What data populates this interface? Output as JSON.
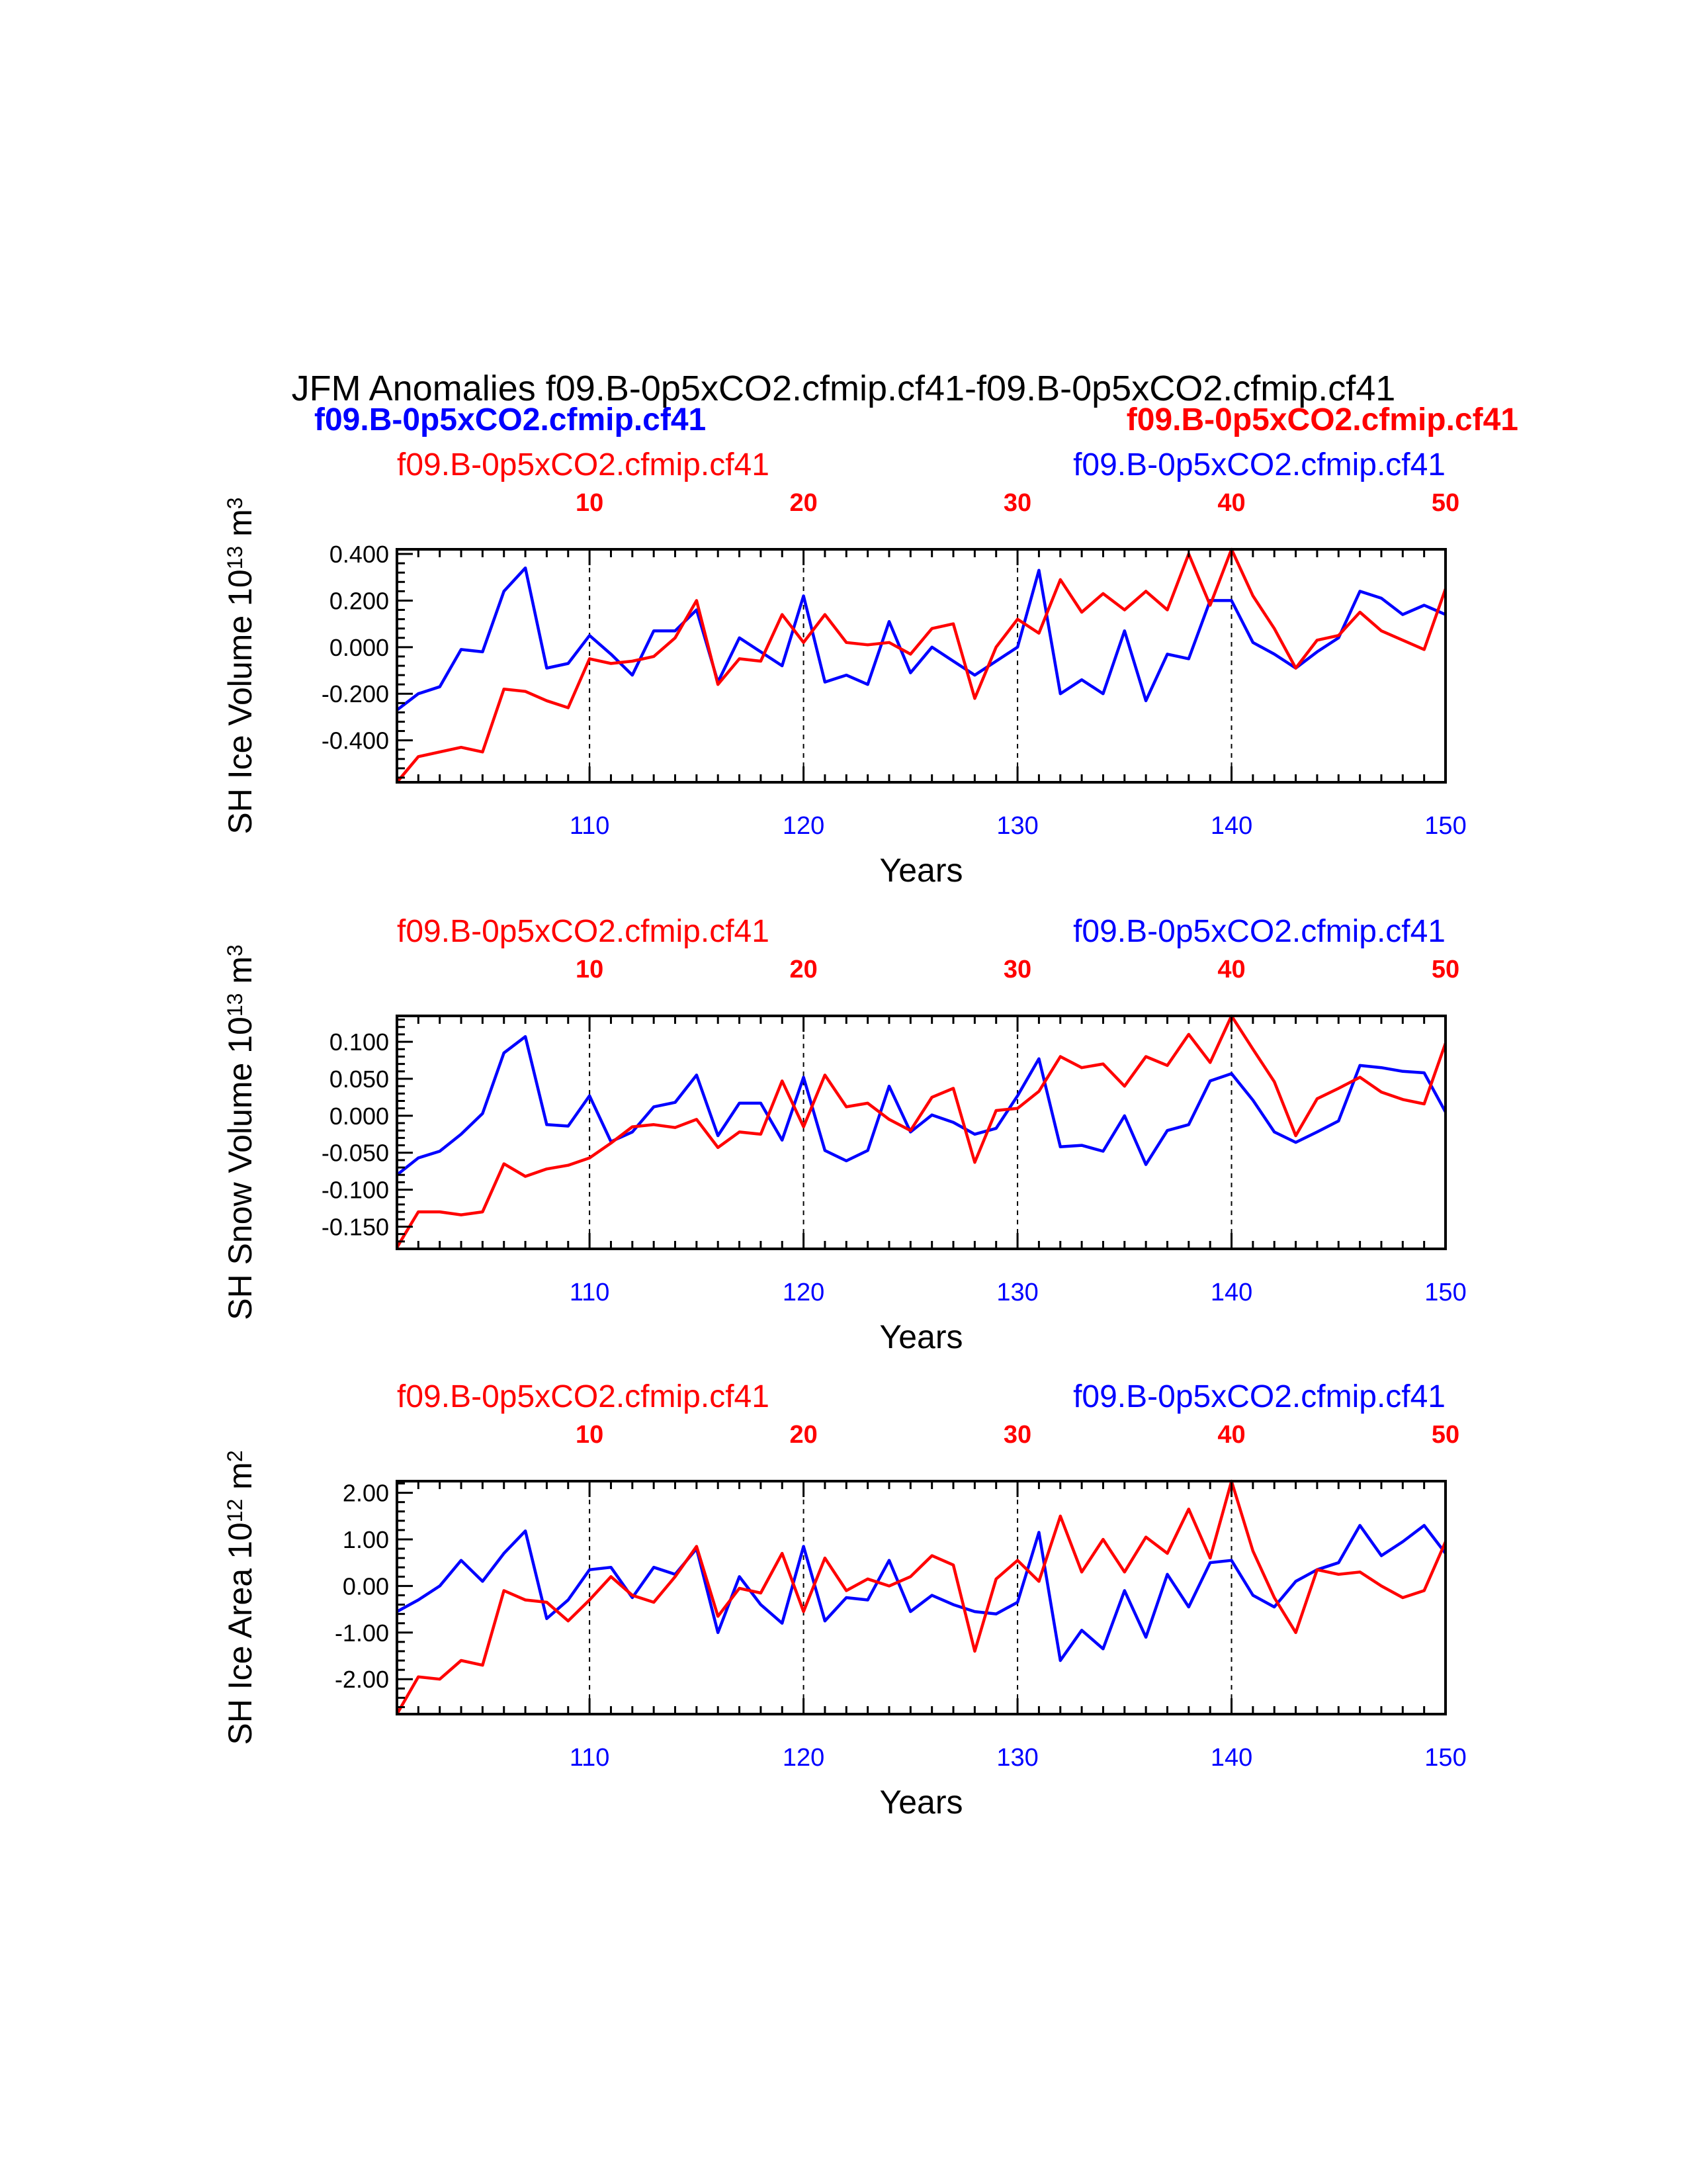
{
  "header": {
    "title": "JFM Anomalies f09.B-0p5xCO2.cfmip.cf41-f09.B-0p5xCO2.cfmip.cf41",
    "left_bold": "f09.B-0p5xCO2.cfmip.cf41",
    "right_bold": "f09.B-0p5xCO2.cfmip.cf41"
  },
  "colors": {
    "blue": "#0000ff",
    "red": "#ff0000",
    "axis": "#000000"
  },
  "chart_data": [
    {
      "type": "line",
      "ylabel": "SH Ice Volume 10",
      "ylabel_sup1": "13",
      "ylabel_unit": " m",
      "ylabel_sup2": "3",
      "xlabel": "Years",
      "left_label": "f09.B-0p5xCO2.cfmip.cf41",
      "right_label": "f09.B-0p5xCO2.cfmip.cf41",
      "ylim": [
        -0.58,
        0.42
      ],
      "yticks": [
        "-0.400",
        "-0.200",
        "0.000",
        "0.200",
        "0.400"
      ],
      "ytick_values": [
        -0.4,
        -0.2,
        0.0,
        0.2,
        0.4
      ],
      "xlim": [
        101,
        150
      ],
      "xticks_bottom": [
        "110",
        "120",
        "130",
        "140",
        "150"
      ],
      "xticks_top": [
        "10",
        "20",
        "30",
        "40",
        "50"
      ],
      "xtick_values": [
        110,
        120,
        130,
        140,
        150
      ],
      "series": [
        {
          "color": "#0000ff",
          "start": 101,
          "values": [
            -0.27,
            -0.2,
            -0.17,
            -0.01,
            -0.02,
            0.24,
            0.34,
            -0.09,
            -0.07,
            0.05,
            -0.03,
            -0.12,
            0.07,
            0.07,
            0.16,
            -0.15,
            0.04,
            -0.02,
            -0.08,
            0.22,
            -0.15,
            -0.12,
            -0.16,
            0.11,
            -0.11,
            0.0,
            -0.06,
            -0.12,
            -0.06,
            0.0,
            0.33,
            -0.2,
            -0.14,
            -0.2,
            0.07,
            -0.23,
            -0.03,
            -0.05,
            0.2,
            0.2,
            0.02,
            -0.03,
            -0.09,
            -0.02,
            0.04,
            0.24,
            0.21,
            0.14,
            0.18,
            0.14
          ]
        },
        {
          "color": "#ff0000",
          "start": 101,
          "values": [
            -0.58,
            -0.47,
            -0.45,
            -0.43,
            -0.45,
            -0.18,
            -0.19,
            -0.23,
            -0.26,
            -0.05,
            -0.07,
            -0.06,
            -0.04,
            0.04,
            0.2,
            -0.16,
            -0.05,
            -0.06,
            0.14,
            0.02,
            0.14,
            0.02,
            0.01,
            0.02,
            -0.03,
            0.08,
            0.1,
            -0.22,
            0.0,
            0.12,
            0.06,
            0.29,
            0.15,
            0.23,
            0.16,
            0.24,
            0.16,
            0.4,
            0.18,
            0.42,
            0.22,
            0.08,
            -0.09,
            0.03,
            0.05,
            0.15,
            0.07,
            0.03,
            -0.01,
            0.25
          ]
        }
      ]
    },
    {
      "type": "line",
      "ylabel": "SH Snow Volume 10",
      "ylabel_sup1": "13",
      "ylabel_unit": " m",
      "ylabel_sup2": "3",
      "xlabel": "Years",
      "left_label": "f09.B-0p5xCO2.cfmip.cf41",
      "right_label": "f09.B-0p5xCO2.cfmip.cf41",
      "ylim": [
        -0.18,
        0.135
      ],
      "yticks": [
        "-0.150",
        "-0.100",
        "-0.050",
        "0.000",
        "0.050",
        "0.100"
      ],
      "ytick_values": [
        -0.15,
        -0.1,
        -0.05,
        0.0,
        0.05,
        0.1
      ],
      "xlim": [
        101,
        150
      ],
      "xticks_bottom": [
        "110",
        "120",
        "130",
        "140",
        "150"
      ],
      "xticks_top": [
        "10",
        "20",
        "30",
        "40",
        "50"
      ],
      "xtick_values": [
        110,
        120,
        130,
        140,
        150
      ],
      "series": [
        {
          "color": "#0000ff",
          "start": 101,
          "values": [
            -0.08,
            -0.057,
            -0.048,
            -0.025,
            0.003,
            0.085,
            0.107,
            -0.012,
            -0.014,
            0.027,
            -0.035,
            -0.022,
            0.012,
            0.018,
            0.055,
            -0.027,
            0.017,
            0.017,
            -0.033,
            0.052,
            -0.047,
            -0.061,
            -0.047,
            0.04,
            -0.022,
            0.001,
            -0.009,
            -0.025,
            -0.017,
            0.027,
            0.077,
            -0.042,
            -0.04,
            -0.048,
            0.0,
            -0.066,
            -0.02,
            -0.012,
            0.047,
            0.057,
            0.021,
            -0.022,
            -0.036,
            -0.022,
            -0.007,
            0.068,
            0.065,
            0.06,
            0.058,
            0.005
          ]
        },
        {
          "color": "#ff0000",
          "start": 101,
          "values": [
            -0.178,
            -0.13,
            -0.13,
            -0.134,
            -0.13,
            -0.065,
            -0.082,
            -0.072,
            -0.067,
            -0.057,
            -0.037,
            -0.015,
            -0.012,
            -0.016,
            -0.005,
            -0.043,
            -0.022,
            -0.025,
            0.047,
            -0.015,
            0.055,
            0.012,
            0.017,
            -0.005,
            -0.02,
            0.025,
            0.037,
            -0.063,
            0.007,
            0.01,
            0.033,
            0.08,
            0.065,
            0.07,
            0.04,
            0.08,
            0.068,
            0.11,
            0.072,
            0.135,
            0.09,
            0.046,
            -0.027,
            0.023,
            0.037,
            0.052,
            0.032,
            0.022,
            0.016,
            0.098
          ]
        }
      ]
    },
    {
      "type": "line",
      "ylabel": "SH Ice Area 10",
      "ylabel_sup1": "12",
      "ylabel_unit": " m",
      "ylabel_sup2": "2",
      "xlabel": "Years",
      "left_label": "f09.B-0p5xCO2.cfmip.cf41",
      "right_label": "f09.B-0p5xCO2.cfmip.cf41",
      "ylim": [
        -2.75,
        2.25
      ],
      "yticks": [
        "-2.00",
        "-1.00",
        "0.00",
        "1.00",
        "2.00"
      ],
      "ytick_values": [
        -2.0,
        -1.0,
        0.0,
        1.0,
        2.0
      ],
      "xlim": [
        101,
        150
      ],
      "xticks_bottom": [
        "110",
        "120",
        "130",
        "140",
        "150"
      ],
      "xticks_top": [
        "10",
        "20",
        "30",
        "40",
        "50"
      ],
      "xtick_values": [
        110,
        120,
        130,
        140,
        150
      ],
      "series": [
        {
          "color": "#0000ff",
          "start": 101,
          "values": [
            -0.55,
            -0.3,
            0.0,
            0.55,
            0.1,
            0.7,
            1.18,
            -0.7,
            -0.3,
            0.35,
            0.4,
            -0.25,
            0.4,
            0.25,
            0.8,
            -1.0,
            0.2,
            -0.4,
            -0.8,
            0.85,
            -0.75,
            -0.25,
            -0.3,
            0.55,
            -0.55,
            -0.2,
            -0.4,
            -0.55,
            -0.6,
            -0.35,
            1.15,
            -1.6,
            -0.95,
            -1.35,
            -0.1,
            -1.1,
            0.25,
            -0.45,
            0.5,
            0.55,
            -0.2,
            -0.45,
            0.1,
            0.35,
            0.5,
            1.3,
            0.65,
            0.95,
            1.3,
            0.7
          ]
        },
        {
          "color": "#ff0000",
          "start": 101,
          "values": [
            -2.75,
            -1.95,
            -2.0,
            -1.6,
            -1.7,
            -0.1,
            -0.3,
            -0.35,
            -0.75,
            -0.3,
            0.2,
            -0.2,
            -0.35,
            0.2,
            0.85,
            -0.65,
            -0.05,
            -0.15,
            0.7,
            -0.55,
            0.6,
            -0.1,
            0.15,
            0.0,
            0.2,
            0.65,
            0.45,
            -1.4,
            0.15,
            0.55,
            0.1,
            1.5,
            0.3,
            1.0,
            0.3,
            1.05,
            0.7,
            1.65,
            0.6,
            2.25,
            0.75,
            -0.25,
            -1.0,
            0.35,
            0.25,
            0.3,
            0.0,
            -0.25,
            -0.1,
            0.95
          ]
        }
      ]
    }
  ]
}
